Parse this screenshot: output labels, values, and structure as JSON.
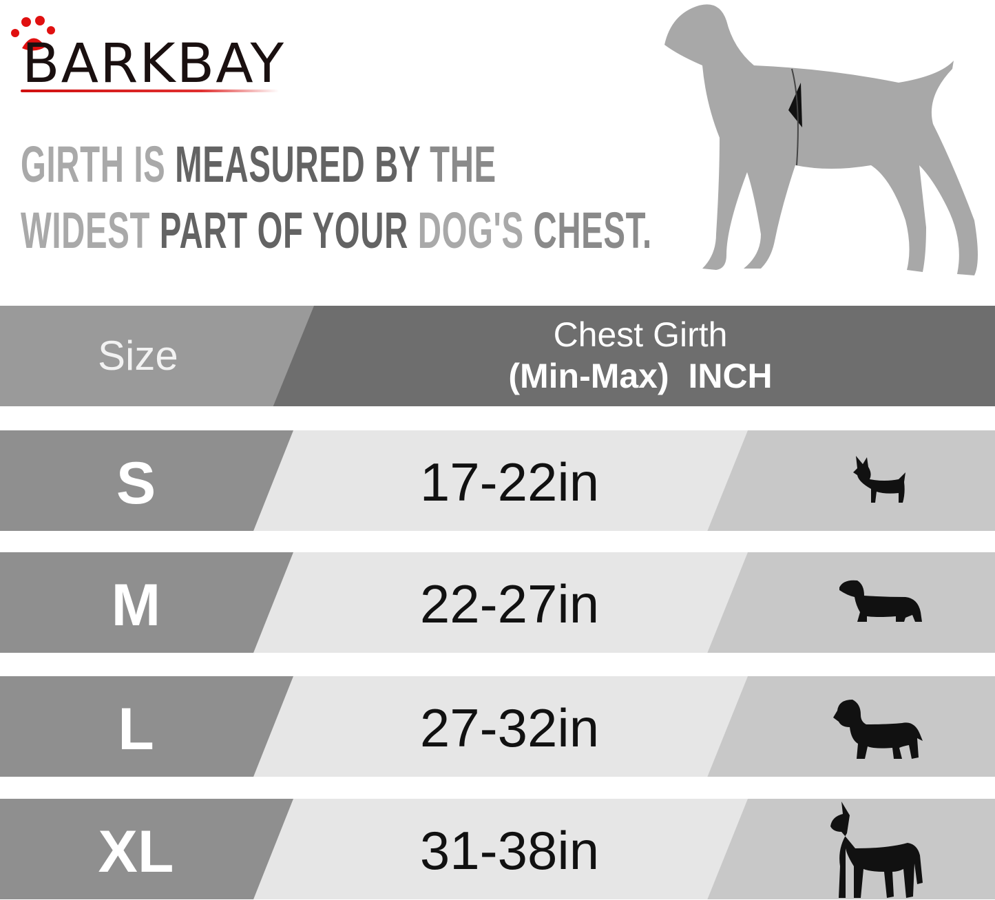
{
  "brand": {
    "logo_text": "BARKBAY",
    "accent": "#d01010"
  },
  "headline": {
    "line1": [
      {
        "t": "GIRTH IS ",
        "tone": "light"
      },
      {
        "t": "MEASURED BY ",
        "tone": "dark"
      },
      {
        "t": "THE",
        "tone": "mid"
      }
    ],
    "line2": [
      {
        "t": "WIDEST ",
        "tone": "light"
      },
      {
        "t": "PART OF YOUR ",
        "tone": "dark"
      },
      {
        "t": "DOG'S ",
        "tone": "light"
      },
      {
        "t": "CHEST.",
        "tone": "mid"
      }
    ]
  },
  "table": {
    "header": {
      "size": "Size",
      "girth_line1": "Chest Girth",
      "girth_line2a": "(Min-Max)",
      "girth_line2b": "INCH"
    },
    "rows": [
      {
        "size": "S",
        "range": "17-22in",
        "icon": "chihuahua-icon"
      },
      {
        "size": "M",
        "range": "22-27in",
        "icon": "dachshund-icon"
      },
      {
        "size": "L",
        "range": "27-32in",
        "icon": "labrador-icon"
      },
      {
        "size": "XL",
        "range": "31-38in",
        "icon": "great-dane-icon"
      }
    ]
  },
  "colors": {
    "header_left": "#9a9a9a",
    "header_right": "#6e6e6e",
    "row_left": "#8f8f8f",
    "row_mid": "#e6e6e6",
    "row_right": "#c8c8c8"
  }
}
